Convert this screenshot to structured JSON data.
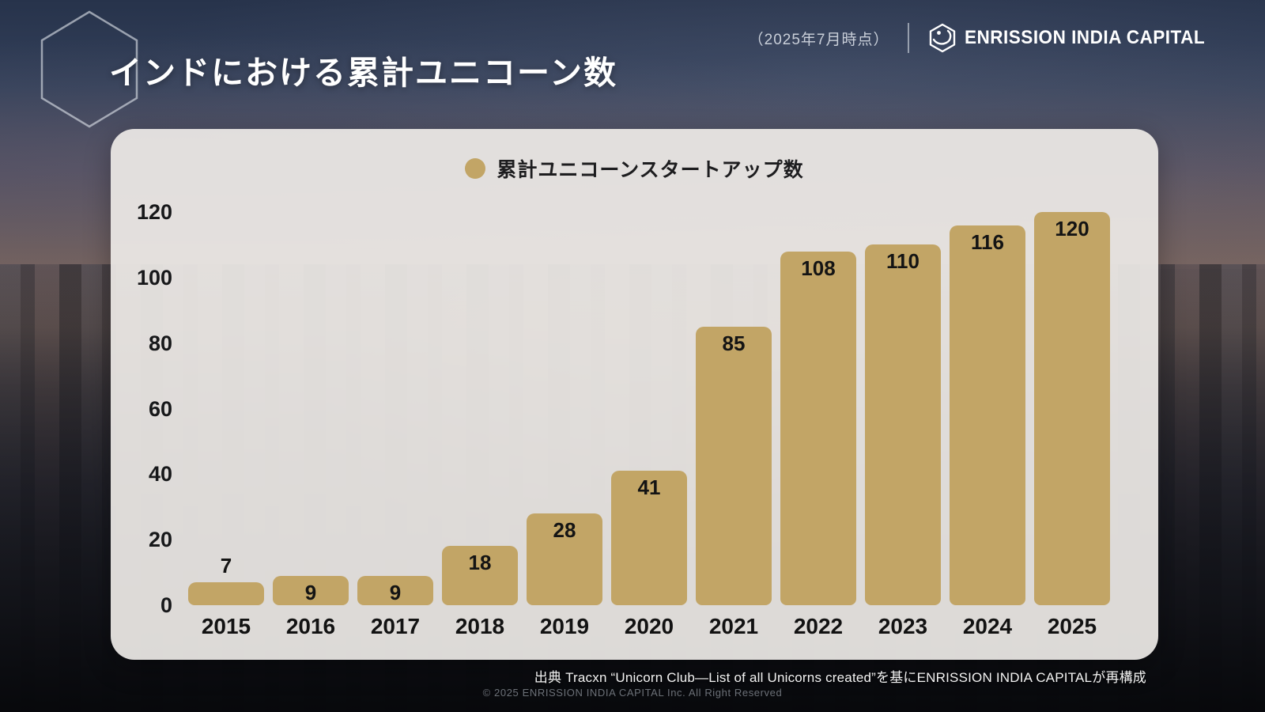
{
  "header": {
    "title": "インドにおける累計ユニコーン数",
    "date_note": "（2025年7月時点）",
    "brand_name": "ENRISSION INDIA CAPITAL"
  },
  "chart_data": {
    "type": "bar",
    "title": "インドにおける累計ユニコーン数",
    "legend": "累計ユニコーンスタートアップ数",
    "legend_position": "top-center",
    "categories": [
      "2015",
      "2016",
      "2017",
      "2018",
      "2019",
      "2020",
      "2021",
      "2022",
      "2023",
      "2024",
      "2025"
    ],
    "values": [
      7,
      9,
      9,
      18,
      28,
      41,
      85,
      108,
      110,
      116,
      120
    ],
    "xlabel": "",
    "ylabel": "",
    "ylim": [
      0,
      120
    ],
    "yticks": [
      0,
      20,
      40,
      60,
      80,
      100,
      120
    ],
    "grid": false,
    "bar_color": "#c2a566",
    "value_label_color": "#141414"
  },
  "footer": {
    "source": "出典 Tracxn “Unicorn Club—List of all Unicorns created”を基にENRISSION INDIA CAPITALが再構成",
    "copyright": "© 2025 ENRISSION INDIA CAPITAL Inc. All Right Reserved"
  },
  "colors": {
    "accent_gold": "#c2a566",
    "panel_bg": "rgba(237,234,230,0.93)",
    "title_text": "#ffffff"
  }
}
